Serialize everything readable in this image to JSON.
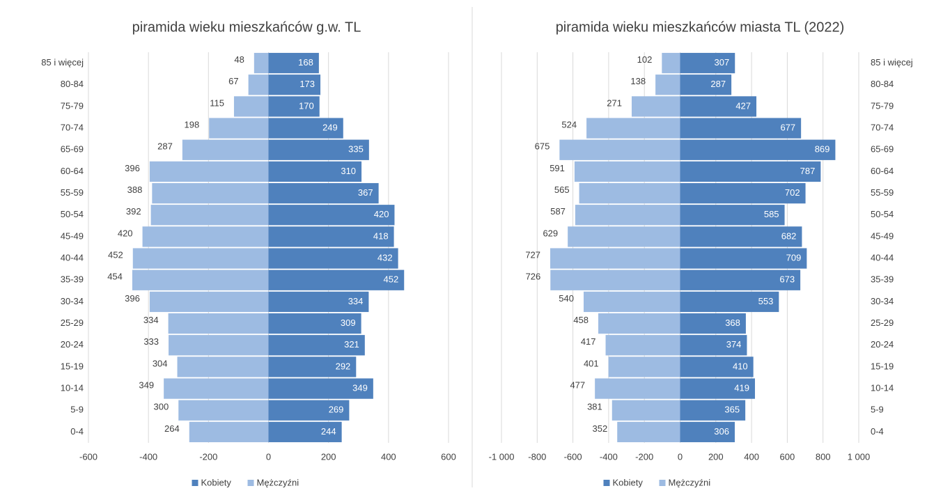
{
  "chart_data": [
    {
      "type": "bar",
      "title": "piramida wieku mieszkańców g.w. TL",
      "categories": [
        "85 i więcej",
        "80-84",
        "75-79",
        "70-74",
        "65-69",
        "60-64",
        "55-59",
        "50-54",
        "45-49",
        "40-44",
        "35-39",
        "30-34",
        "25-29",
        "20-24",
        "15-19",
        "10-14",
        "5-9",
        "0-4"
      ],
      "series": [
        {
          "name": "Kobiety",
          "color": "#4f81bd",
          "values": [
            168,
            173,
            170,
            249,
            335,
            310,
            367,
            420,
            418,
            432,
            452,
            334,
            309,
            321,
            292,
            349,
            269,
            244
          ]
        },
        {
          "name": "Mężczyźni",
          "color": "#9dbbe2",
          "values": [
            -48,
            -67,
            -115,
            -198,
            -287,
            -396,
            -388,
            -392,
            -420,
            -452,
            -454,
            -396,
            -334,
            -333,
            -304,
            -349,
            -300,
            -264
          ],
          "value_labels": [
            "48",
            "67",
            "115",
            "198",
            "287",
            "396",
            "388",
            "392",
            "420",
            "452",
            "454",
            "396",
            "334",
            "333",
            "304",
            "349",
            "300",
            "264"
          ]
        }
      ],
      "xlim": [
        -600,
        600
      ],
      "xticks": [
        -600,
        -400,
        -200,
        0,
        200,
        400,
        600
      ],
      "grid": true
    },
    {
      "type": "bar",
      "title": "piramida wieku mieszkańców miasta TL (2022)",
      "categories": [
        "85 i więcej",
        "80-84",
        "75-79",
        "70-74",
        "65-69",
        "60-64",
        "55-59",
        "50-54",
        "45-49",
        "40-44",
        "35-39",
        "30-34",
        "25-29",
        "20-24",
        "15-19",
        "10-14",
        "5-9",
        "0-4"
      ],
      "series": [
        {
          "name": "Kobiety",
          "color": "#4f81bd",
          "values": [
            307,
            287,
            427,
            677,
            869,
            787,
            702,
            585,
            682,
            709,
            673,
            553,
            368,
            374,
            410,
            419,
            365,
            306
          ]
        },
        {
          "name": "Mężczyźni",
          "color": "#9dbbe2",
          "values": [
            -102,
            -138,
            -271,
            -524,
            -675,
            -591,
            -565,
            -587,
            -629,
            -727,
            -726,
            -540,
            -458,
            -417,
            -401,
            -477,
            -381,
            -352
          ],
          "value_labels": [
            "102",
            "138",
            "271",
            "524",
            "675",
            "591",
            "565",
            "587",
            "629",
            "727",
            "726",
            "540",
            "458",
            "417",
            "401",
            "477",
            "381",
            "352"
          ]
        }
      ],
      "xlim": [
        -1000,
        1000
      ],
      "xticks": [
        {
          "value": -1000,
          "label": "-1 000"
        },
        -800,
        -600,
        -400,
        -200,
        0,
        200,
        400,
        600,
        800,
        {
          "value": 1000,
          "label": "1 000"
        }
      ],
      "grid": true
    }
  ]
}
